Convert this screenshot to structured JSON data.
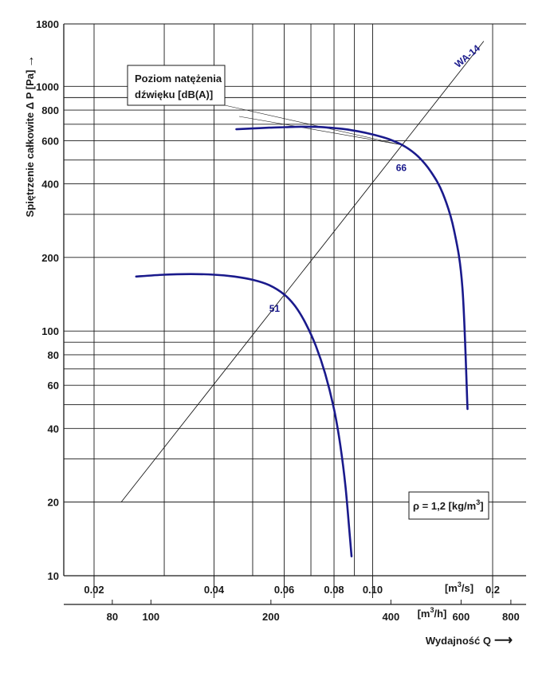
{
  "chart_data": {
    "type": "line",
    "title": "",
    "ylabel": "Spiętrzenie całkowite Δ P [Pa]",
    "xlabel": "Wydajność Q",
    "y_scale": "log",
    "ylim": [
      10,
      1800
    ],
    "y_ticks": [
      10,
      20,
      40,
      60,
      80,
      100,
      200,
      400,
      600,
      800,
      1000,
      1800
    ],
    "y_gridlines": [
      10,
      20,
      30,
      40,
      50,
      60,
      70,
      80,
      90,
      100,
      200,
      300,
      400,
      500,
      600,
      700,
      800,
      900,
      1000,
      1800
    ],
    "x_scale": "log",
    "x_axis_m3s": {
      "unit": "[m³/s]",
      "unit_parts": {
        "pre": "[m",
        "sup": "3",
        "post": "/s]"
      },
      "xlim": [
        0.02,
        0.2
      ],
      "ticks": [
        0.02,
        0.04,
        0.06,
        0.08,
        0.1,
        0.2
      ],
      "tick_labels": [
        "0.02",
        "0.04",
        "0.06",
        "0.08",
        "0.10",
        "0.2"
      ]
    },
    "x_axis_m3h": {
      "unit": "[m³/h]",
      "unit_parts": {
        "pre": "[m",
        "sup": "3",
        "post": "/h]"
      },
      "ticks": [
        80,
        100,
        200,
        400,
        600,
        800
      ],
      "tick_labels": [
        "80",
        "100",
        "200",
        "400",
        "600",
        "800"
      ]
    },
    "x_gridlines_m3s": [
      0.02,
      0.03,
      0.04,
      0.05,
      0.06,
      0.07,
      0.08,
      0.09,
      0.1,
      0.2
    ],
    "series": [
      {
        "label": "51",
        "color": "#1a1a8c",
        "x": [
          0.0255,
          0.03,
          0.035,
          0.04,
          0.045,
          0.05,
          0.055,
          0.06,
          0.064,
          0.068,
          0.072,
          0.076,
          0.08,
          0.083,
          0.0855,
          0.0875,
          0.0885
        ],
        "y": [
          167,
          170,
          171,
          170,
          167,
          162,
          154,
          141,
          126,
          107,
          87,
          67,
          48,
          34,
          23,
          15,
          12
        ]
      },
      {
        "label": "66",
        "color": "#1a1a8c",
        "x": [
          0.0455,
          0.05,
          0.055,
          0.06,
          0.066,
          0.072,
          0.078,
          0.085,
          0.092,
          0.1,
          0.11,
          0.12,
          0.13,
          0.14,
          0.15,
          0.16,
          0.168,
          0.173
        ],
        "y": [
          668,
          673,
          678,
          681,
          684,
          683,
          678,
          669,
          655,
          636,
          608,
          570,
          517,
          448,
          365,
          259,
          150,
          48
        ]
      }
    ],
    "system_line": {
      "label": "WA-14",
      "x": [
        0.0234,
        0.19
      ],
      "y": [
        20,
        1530
      ]
    },
    "annotations": {
      "noise_box_line1": "Poziom natężenia",
      "noise_box_line2": "dźwięku [dB(A)]",
      "density_pre": "ρ = 1,2 [kg/m",
      "density_sup": "3",
      "density_post": "]",
      "y_arrow": "→",
      "x_arrow": "⟶"
    },
    "grid": true
  }
}
